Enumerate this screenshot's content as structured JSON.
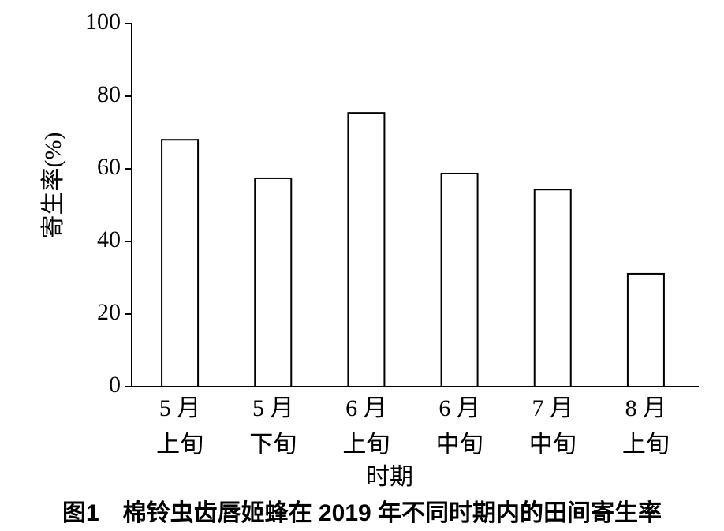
{
  "chart_data": {
    "type": "bar",
    "title": "图1　棉铃虫齿唇姬蜂在 2019 年不同时期内的田间寄生率",
    "x_label": "时期",
    "y_label": "寄生率(%)",
    "categories": [
      [
        "5 月",
        "上旬"
      ],
      [
        "5 月",
        "下旬"
      ],
      [
        "6 月",
        "上旬"
      ],
      [
        "6 月",
        "中旬"
      ],
      [
        "7 月",
        "中旬"
      ],
      [
        "8 月",
        "上旬"
      ]
    ],
    "values": [
      68,
      57.4,
      75.4,
      58.7,
      54.3,
      31.1
    ],
    "color": "#ffffff",
    "ylim": [
      0,
      100
    ],
    "yticks": [
      0,
      20,
      40,
      60,
      80,
      100
    ],
    "grid": false
  }
}
